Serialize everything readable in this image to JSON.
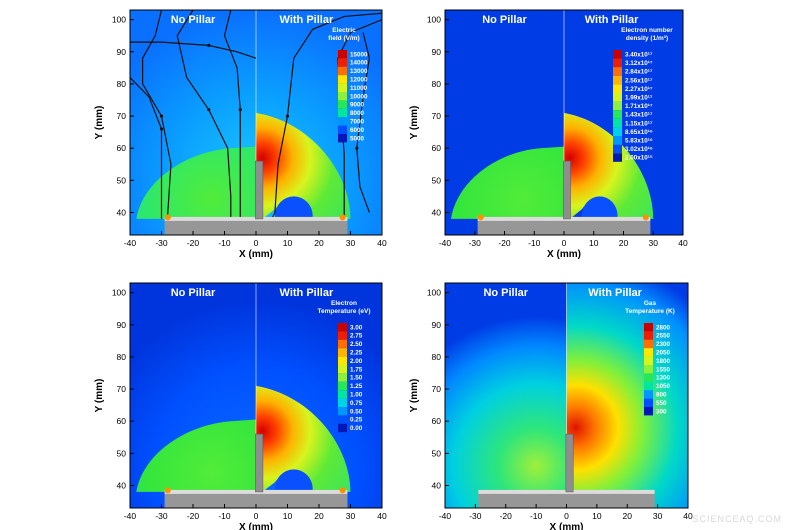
{
  "chart_data": [
    {
      "type": "heatmap",
      "quantity": "electric-field",
      "left_label": "No Pillar",
      "right_label": "With Pillar",
      "xlabel": "X (mm)",
      "ylabel": "Y (mm)",
      "xlim": [
        -40,
        40
      ],
      "ylim": [
        33,
        103
      ],
      "x_ticks": [
        "-40",
        "-30",
        "-20",
        "-10",
        "0",
        "10",
        "20",
        "30",
        "40"
      ],
      "y_ticks": [
        "40",
        "50",
        "60",
        "70",
        "80",
        "90",
        "100"
      ],
      "legend_title": [
        "Electric",
        "field (V/m)"
      ],
      "legend_levels": [
        "15000",
        "14000",
        "13000",
        "12000",
        "11000",
        "10000",
        "9000",
        "8000",
        "7000",
        "6000",
        "5000"
      ],
      "background_value": 5500,
      "no_pillar_region": {
        "peak_value": 11000,
        "center": [
          -10,
          42
        ],
        "extent_x": [
          -38,
          0
        ],
        "top_y": 60
      },
      "with_pillar_region": {
        "peak_value": 15000,
        "peak_at": [
          2,
          57
        ],
        "extent_x": [
          0,
          32
        ],
        "top_y": 71
      },
      "field_lines": true
    },
    {
      "type": "heatmap",
      "quantity": "electron-number-density",
      "left_label": "No Pillar",
      "right_label": "With Pillar",
      "xlabel": "X (mm)",
      "ylabel": "Y (mm)",
      "xlim": [
        -40,
        40
      ],
      "ylim": [
        33,
        103
      ],
      "x_ticks": [
        "-40",
        "-30",
        "-20",
        "-10",
        "0",
        "10",
        "20",
        "30",
        "40"
      ],
      "y_ticks": [
        "40",
        "50",
        "60",
        "70",
        "80",
        "90",
        "100"
      ],
      "legend_title": [
        "Electron number",
        "density (1/m³)"
      ],
      "legend_levels": [
        "3.40x10¹⁷",
        "3.12x10¹⁷",
        "2.84x10¹⁷",
        "2.56x10¹⁷",
        "2.27x10¹⁷",
        "1.99x10¹⁷",
        "1.71x10¹⁷",
        "1.43x10¹⁷",
        "1.15x10¹⁷",
        "8.65x10¹⁶",
        "5.83x10¹⁶",
        "3.02x10¹⁶",
        "2.00x10¹⁵"
      ],
      "background_value": "2.00x10¹⁵",
      "no_pillar_region": {
        "center": [
          -10,
          42
        ],
        "extent_x": [
          -38,
          0
        ],
        "top_y": 60
      },
      "with_pillar_region": {
        "peak_value": "3.40x10¹⁷",
        "peak_at": [
          2,
          57
        ],
        "extent_x": [
          0,
          30
        ],
        "top_y": 71
      }
    },
    {
      "type": "heatmap",
      "quantity": "electron-temperature",
      "left_label": "No Pillar",
      "right_label": "With Pillar",
      "xlabel": "X (mm)",
      "ylabel": "Y (mm)",
      "xlim": [
        -40,
        40
      ],
      "ylim": [
        33,
        103
      ],
      "x_ticks": [
        "-40",
        "-30",
        "-20",
        "-10",
        "0",
        "10",
        "20",
        "30",
        "40"
      ],
      "y_ticks": [
        "40",
        "50",
        "60",
        "70",
        "80",
        "90",
        "100"
      ],
      "legend_title": [
        "Electron",
        "Temperature (eV)"
      ],
      "legend_levels": [
        "3.00",
        "2.75",
        "2.50",
        "2.25",
        "2.00",
        "1.75",
        "1.50",
        "1.25",
        "1.00",
        "0.75",
        "0.50",
        "0.25",
        "0.00"
      ],
      "background_value": 0.3,
      "no_pillar_region": {
        "center": [
          -10,
          42
        ],
        "extent_x": [
          -38,
          0
        ],
        "top_y": 60
      },
      "with_pillar_region": {
        "peak_value": 2.75,
        "peak_at": [
          3,
          57
        ],
        "extent_x": [
          0,
          30
        ],
        "top_y": 71
      }
    },
    {
      "type": "heatmap",
      "quantity": "gas-temperature",
      "left_label": "No Pillar",
      "right_label": "With Pillar",
      "xlabel": "X (mm)",
      "ylabel": "Y (mm)",
      "xlim": [
        -40,
        40
      ],
      "ylim": [
        33,
        103
      ],
      "x_ticks": [
        "-40",
        "-30",
        "-20",
        "-10",
        "0",
        "10",
        "20",
        "30",
        "40"
      ],
      "y_ticks": [
        "40",
        "50",
        "60",
        "70",
        "80",
        "90",
        "100"
      ],
      "legend_title": [
        "Gas",
        "Temperature (K)"
      ],
      "legend_levels": [
        "2800",
        "2550",
        "2300",
        "2050",
        "1800",
        "1550",
        "1300",
        "1050",
        "800",
        "550",
        "300"
      ],
      "background_value": 300,
      "no_pillar_region": {
        "peak_value": 1700,
        "center": [
          -10,
          45
        ],
        "extent_x": [
          -40,
          0
        ],
        "top_y": 103
      },
      "with_pillar_region": {
        "peak_value": 2800,
        "peak_at": [
          3,
          58
        ],
        "extent_x": [
          0,
          40
        ],
        "top_y": 103
      }
    }
  ],
  "watermark": "SCIENCEAQ.COM",
  "colors": {
    "colormap": [
      "#0019b4",
      "#0050ff",
      "#0096ff",
      "#00d2e6",
      "#00e6a0",
      "#28e65a",
      "#8cf03c",
      "#d2f51e",
      "#ffe600",
      "#ffb400",
      "#ff6e00",
      "#f01e00",
      "#c80000"
    ],
    "substrate": "#9a9a9a",
    "pillar": "#8e8e8e",
    "field_line": "#111111"
  }
}
